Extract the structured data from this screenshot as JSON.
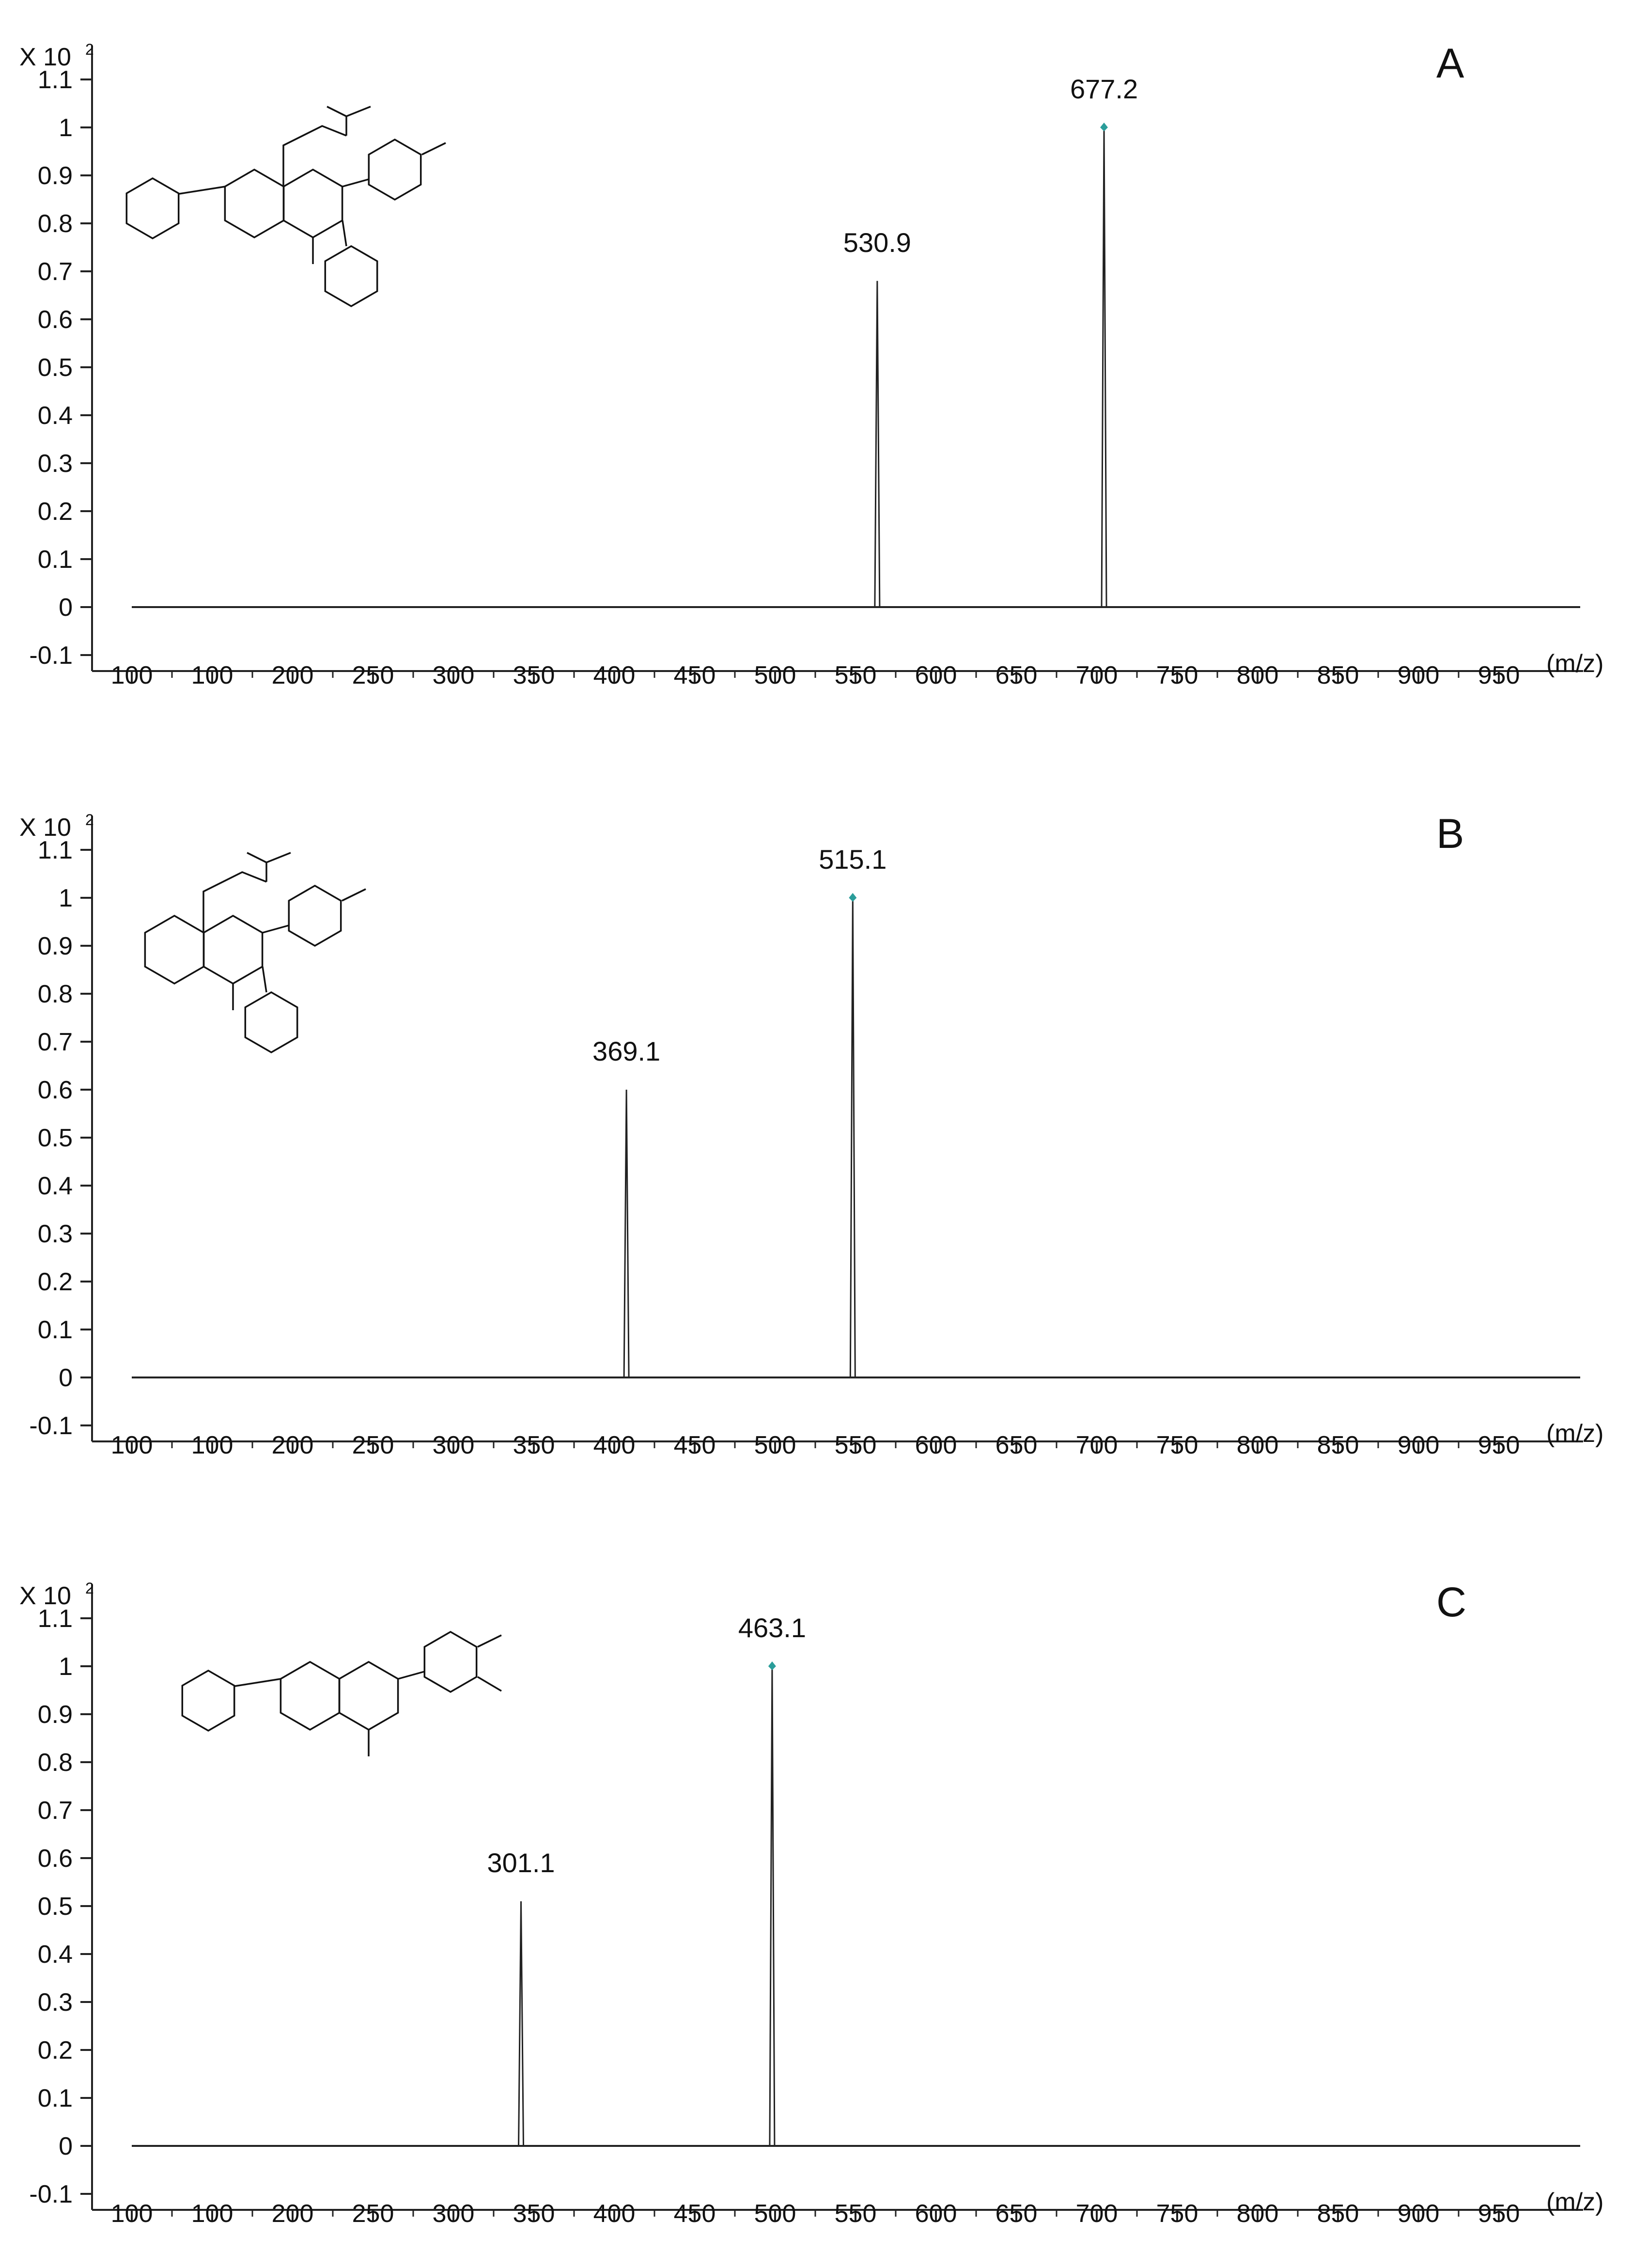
{
  "chart_data": [
    {
      "type": "bar",
      "panel_label": "A",
      "y_axis_unit": "X 10",
      "y_axis_exponent": "2",
      "y_ticks": [
        "-0.1",
        "0",
        "0.1",
        "0.2",
        "0.3",
        "0.4",
        "0.5",
        "0.6",
        "0.7",
        "0.8",
        "0.9",
        "1",
        "1.1"
      ],
      "ylim": [
        -0.1,
        1.1
      ],
      "x_ticks": [
        "100",
        "100",
        "200",
        "250",
        "300",
        "350",
        "400",
        "450",
        "500",
        "550",
        "600",
        "650",
        "700",
        "750",
        "800",
        "850",
        "900",
        "950"
      ],
      "x_unit": "(m/z)",
      "xlim": [
        75,
        1000
      ],
      "grid": false,
      "peaks": [
        {
          "label": "530.9",
          "x": 530.9,
          "y": 0.68,
          "marker": false
        },
        {
          "label": "677.2",
          "x": 677.2,
          "y": 1.0,
          "marker": true
        }
      ]
    },
    {
      "type": "bar",
      "panel_label": "B",
      "y_axis_unit": "X 10",
      "y_axis_exponent": "2",
      "y_ticks": [
        "-0.1",
        "0",
        "0.1",
        "0.2",
        "0.3",
        "0.4",
        "0.5",
        "0.6",
        "0.7",
        "0.8",
        "0.9",
        "1",
        "1.1"
      ],
      "ylim": [
        -0.1,
        1.1
      ],
      "x_ticks": [
        "100",
        "100",
        "200",
        "250",
        "300",
        "350",
        "400",
        "450",
        "500",
        "550",
        "600",
        "650",
        "700",
        "750",
        "800",
        "850",
        "900",
        "950"
      ],
      "x_unit": "(m/z)",
      "xlim": [
        75,
        1000
      ],
      "grid": false,
      "peaks": [
        {
          "label": "369.1",
          "x": 369.1,
          "y": 0.6,
          "marker": false
        },
        {
          "label": "515.1",
          "x": 515.1,
          "y": 1.0,
          "marker": true
        }
      ]
    },
    {
      "type": "bar",
      "panel_label": "C",
      "y_axis_unit": "X 10",
      "y_axis_exponent": "2",
      "y_ticks": [
        "-0.1",
        "0",
        "0.1",
        "0.2",
        "0.3",
        "0.4",
        "0.5",
        "0.6",
        "0.7",
        "0.8",
        "0.9",
        "1",
        "1.1"
      ],
      "ylim": [
        -0.1,
        1.1
      ],
      "x_ticks": [
        "100",
        "100",
        "200",
        "250",
        "300",
        "350",
        "400",
        "450",
        "500",
        "550",
        "600",
        "650",
        "700",
        "750",
        "800",
        "850",
        "900",
        "950"
      ],
      "x_unit": "(m/z)",
      "xlim": [
        75,
        1000
      ],
      "grid": false,
      "peaks": [
        {
          "label": "301.1",
          "x": 301.1,
          "y": 0.51,
          "marker": false
        },
        {
          "label": "463.1",
          "x": 463.1,
          "y": 1.0,
          "marker": true
        }
      ]
    }
  ],
  "colors": {
    "axis": "#222222",
    "trace": "#222222",
    "peak_marker": "#2a9d9a"
  }
}
